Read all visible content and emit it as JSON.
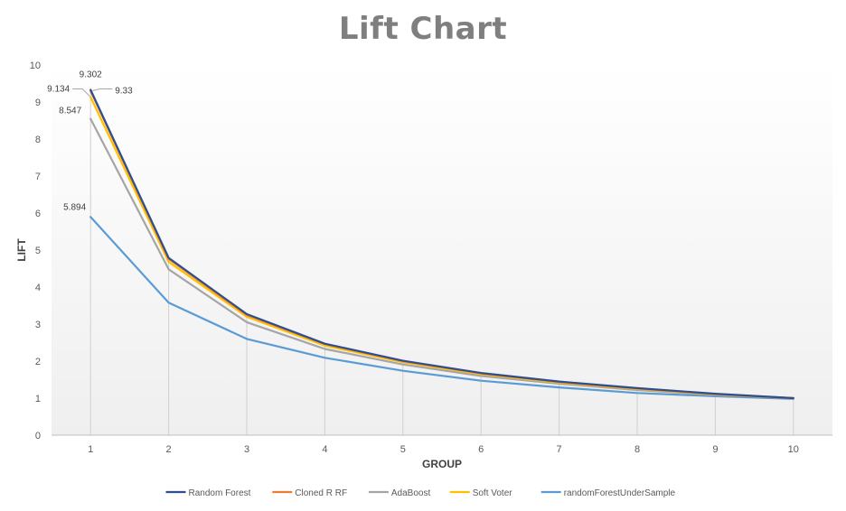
{
  "chart_data": {
    "type": "line",
    "title": "Lift Chart",
    "xlabel": "GROUP",
    "ylabel": "LIFT",
    "x": [
      1,
      2,
      3,
      4,
      5,
      6,
      7,
      8,
      9,
      10
    ],
    "xlim": [
      0.5,
      10.5
    ],
    "ylim": [
      0,
      10
    ],
    "yticks": [
      "0",
      "1",
      "2",
      "3",
      "4",
      "5",
      "6",
      "7",
      "8",
      "9",
      "10"
    ],
    "xticks": [
      "1",
      "2",
      "3",
      "4",
      "5",
      "6",
      "7",
      "8",
      "9",
      "10"
    ],
    "grid": "vertical drop lines at each group",
    "legend": "bottom",
    "series": [
      {
        "name": "Random Forest",
        "color": "#2e4f8f",
        "values": [
          9.33,
          4.79,
          3.27,
          2.47,
          2.01,
          1.68,
          1.45,
          1.27,
          1.12,
          1.0
        ]
      },
      {
        "name": "Cloned R RF",
        "color": "#ed7d31",
        "values": [
          9.302,
          4.76,
          3.25,
          2.46,
          2.0,
          1.67,
          1.44,
          1.26,
          1.11,
          1.0
        ]
      },
      {
        "name": "AdaBoost",
        "color": "#a5a5a5",
        "values": [
          8.547,
          4.48,
          3.05,
          2.33,
          1.91,
          1.6,
          1.39,
          1.22,
          1.09,
          1.0
        ]
      },
      {
        "name": "Soft Voter",
        "color": "#ffc000",
        "values": [
          9.134,
          4.68,
          3.2,
          2.42,
          1.97,
          1.65,
          1.42,
          1.25,
          1.1,
          1.0
        ]
      },
      {
        "name": "randomForestUnderSample",
        "color": "#5b9bd5",
        "values": [
          5.894,
          3.58,
          2.6,
          2.09,
          1.74,
          1.47,
          1.29,
          1.14,
          1.05,
          0.98
        ]
      }
    ],
    "annotations": [
      "9.302",
      "9.33",
      "9.134",
      "8.547",
      "5.894"
    ]
  }
}
